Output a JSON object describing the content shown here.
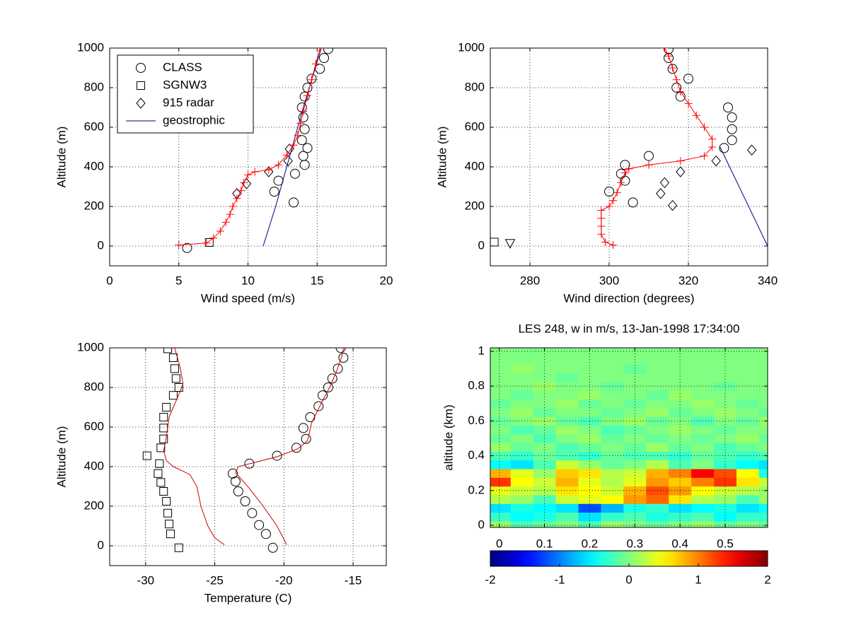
{
  "chart_data": [
    {
      "type": "line",
      "xlabel": "Wind speed (m/s)",
      "ylabel": "Altitude (m)",
      "xlim": [
        0,
        20
      ],
      "ylim": [
        -100,
        1000
      ],
      "xticks": [
        0,
        5,
        10,
        15,
        20
      ],
      "yticks": [
        0,
        200,
        400,
        600,
        800,
        1000
      ],
      "grid": true,
      "legend": "upper left",
      "series": [
        {
          "name": "CLASS",
          "marker": "circle",
          "color": "#000000",
          "line": false,
          "x": [
            5.6,
            13.3,
            11.9,
            12.2,
            13.4,
            14.1,
            14.0,
            14.3,
            13.9,
            14.1,
            14.0,
            13.9,
            14.1,
            14.3,
            14.6,
            15.2,
            15.5,
            15.8
          ],
          "y": [
            -10,
            220,
            275,
            330,
            365,
            410,
            455,
            495,
            535,
            590,
            650,
            700,
            755,
            800,
            845,
            895,
            950,
            995
          ]
        },
        {
          "name": "SGNW3",
          "marker": "square",
          "color": "#000000",
          "line": false,
          "x": [
            7.2
          ],
          "y": [
            18
          ]
        },
        {
          "name": "915 radar",
          "marker": "diamond",
          "color": "#000000",
          "line": false,
          "x": [
            9.2,
            9.9,
            11.5,
            12.9,
            13.0
          ],
          "y": [
            265,
            315,
            375,
            430,
            490
          ]
        },
        {
          "name": "geostrophic",
          "color": "#00007f",
          "line": true,
          "x": [
            11.1,
            12.0,
            13.0,
            14.0,
            15.3
          ],
          "y": [
            0,
            200,
            450,
            700,
            1000
          ]
        },
        {
          "marker": "plus",
          "color": "#ff0000",
          "line": true,
          "x": [
            5.0,
            7.0,
            7.5,
            8.0,
            8.4,
            8.7,
            8.9,
            9.2,
            9.5,
            9.7,
            10.0,
            10.5,
            11.5,
            12.2,
            12.8,
            13.3,
            13.6,
            13.8,
            14.0,
            14.3,
            14.6,
            14.9,
            15.2
          ],
          "y": [
            5,
            15,
            40,
            75,
            120,
            160,
            200,
            240,
            280,
            320,
            360,
            375,
            385,
            410,
            460,
            510,
            560,
            620,
            680,
            760,
            840,
            920,
            1000
          ]
        }
      ]
    },
    {
      "type": "line",
      "xlabel": "Wind direction (degrees)",
      "ylabel": "Altitude (m)",
      "xlim": [
        270,
        340
      ],
      "ylim": [
        -100,
        1000
      ],
      "xticks": [
        280,
        300,
        320,
        340
      ],
      "yticks": [
        0,
        200,
        400,
        600,
        800,
        1000
      ],
      "grid": true,
      "series": [
        {
          "marker": "circle",
          "color": "#000000",
          "line": false,
          "x": [
            306,
            300,
            304,
            303,
            304,
            310,
            329,
            331,
            331,
            331,
            330,
            318,
            317,
            320,
            316,
            315,
            315
          ],
          "y": [
            220,
            275,
            330,
            365,
            410,
            455,
            495,
            535,
            590,
            650,
            700,
            755,
            800,
            845,
            895,
            950,
            995
          ]
        },
        {
          "marker": "square",
          "color": "#000000",
          "line": false,
          "x": [
            271
          ],
          "y": [
            20
          ]
        },
        {
          "marker": "diamond",
          "color": "#000000",
          "line": false,
          "x": [
            316,
            313,
            314,
            318,
            327,
            336
          ],
          "y": [
            205,
            265,
            320,
            375,
            430,
            485
          ]
        },
        {
          "marker": "triangle-down",
          "color": "#000000",
          "line": false,
          "x": [
            275
          ],
          "y": [
            15
          ]
        },
        {
          "color": "#00007f",
          "line": true,
          "x": [
            328,
            340
          ],
          "y": [
            500,
            0
          ]
        },
        {
          "marker": "plus",
          "color": "#ff0000",
          "line": true,
          "x": [
            301,
            299,
            298,
            298,
            298,
            298,
            300,
            301,
            302,
            303,
            304,
            305,
            310,
            318,
            324,
            326,
            326,
            324,
            322,
            320,
            318,
            317,
            316,
            315,
            314
          ],
          "y": [
            5,
            20,
            60,
            100,
            140,
            180,
            200,
            230,
            270,
            320,
            370,
            390,
            410,
            430,
            455,
            500,
            540,
            600,
            660,
            720,
            780,
            840,
            900,
            960,
            1000
          ]
        }
      ]
    },
    {
      "type": "line",
      "xlabel": "Temperature (C)",
      "ylabel": "Altitude (m)",
      "xlim": [
        -32.6,
        -12.6
      ],
      "ylim": [
        -100,
        1000
      ],
      "xticks": [
        -30,
        -25,
        -20,
        -15
      ],
      "yticks": [
        0,
        200,
        400,
        600,
        800,
        1000
      ],
      "grid": true,
      "series": [
        {
          "marker": "square",
          "color": "#000000",
          "line": false,
          "x": [
            -27.6,
            -28.2,
            -28.3,
            -28.4,
            -28.5,
            -28.7,
            -28.9,
            -29.1,
            -29.0,
            -29.9,
            -28.9,
            -28.7,
            -28.7,
            -28.7,
            -28.5,
            -28.0,
            -27.6,
            -27.8,
            -27.9,
            -28.0,
            -28.4
          ],
          "y": [
            -10,
            60,
            110,
            165,
            225,
            275,
            320,
            365,
            415,
            455,
            495,
            540,
            595,
            650,
            700,
            760,
            800,
            845,
            895,
            950,
            995
          ]
        },
        {
          "color": "#cc0000",
          "line": true,
          "x": [
            -24.3,
            -25.0,
            -25.5,
            -26.0,
            -26.3,
            -26.8,
            -28.0,
            -28.5,
            -28.7,
            -28.5,
            -28.3,
            -28.0,
            -27.5,
            -27.3,
            -27.5,
            -27.9
          ],
          "y": [
            5,
            40,
            100,
            200,
            300,
            360,
            400,
            430,
            480,
            550,
            650,
            700,
            780,
            820,
            900,
            1000
          ]
        },
        {
          "marker": "circle",
          "color": "#000000",
          "line": false,
          "x": [
            -20.8,
            -21.3,
            -21.8,
            -22.3,
            -22.8,
            -23.3,
            -23.5,
            -23.7,
            -22.5,
            -20.5,
            -19.1,
            -18.4,
            -18.6,
            -18.1,
            -17.5,
            -17.2,
            -16.8,
            -16.5,
            -16.1,
            -15.7,
            -15.9
          ],
          "y": [
            -10,
            60,
            105,
            165,
            225,
            275,
            325,
            365,
            415,
            455,
            495,
            540,
            595,
            650,
            705,
            760,
            800,
            845,
            895,
            950,
            1000
          ]
        },
        {
          "color": "#cc0000",
          "line": true,
          "x": [
            -19.8,
            -20.5,
            -21.5,
            -22.5,
            -23.5,
            -23.3,
            -20.5,
            -19.0,
            -18.3,
            -18.0,
            -17.3,
            -16.7,
            -16.2,
            -15.8,
            -15.7
          ],
          "y": [
            5,
            100,
            200,
            290,
            370,
            400,
            450,
            490,
            530,
            620,
            720,
            800,
            880,
            960,
            1000
          ]
        }
      ]
    },
    {
      "type": "heatmap",
      "title": "LES 248, w in m/s, 13-Jan-1998 17:34:00",
      "ylabel": "altitude (km)",
      "xlim": [
        -0.02,
        0.594
      ],
      "ylim": [
        -0.012,
        1.02
      ],
      "xticks": [
        0,
        0.1,
        0.2,
        0.3,
        0.4,
        0.5
      ],
      "yticks": [
        0,
        0.2,
        0.4,
        0.6,
        0.8,
        1
      ],
      "grid": true,
      "colormap": "jet",
      "clim": [
        -2,
        2
      ],
      "cticks": [
        -2,
        -1,
        0,
        1,
        2
      ],
      "x": [
        0,
        0.05,
        0.1,
        0.15,
        0.2,
        0.25,
        0.3,
        0.35,
        0.4,
        0.45,
        0.5,
        0.55,
        0.6
      ],
      "y": [
        0,
        0.05,
        0.1,
        0.15,
        0.2,
        0.25,
        0.3,
        0.35,
        0.4,
        0.45,
        0.5,
        0.55,
        0.6,
        0.65,
        0.7,
        0.75,
        0.8,
        0.85,
        0.9,
        0.95,
        1
      ],
      "z": [
        [
          0.1,
          -0.2,
          -0.1,
          0.0,
          -0.2,
          0.1,
          0.0,
          -0.1,
          0.0,
          0.1,
          -0.1,
          0.0,
          -0.1
        ],
        [
          -0.3,
          -0.5,
          -0.4,
          -0.2,
          -0.6,
          -0.3,
          -0.2,
          -0.4,
          -0.3,
          -0.2,
          -0.5,
          -0.3,
          -0.3
        ],
        [
          -0.6,
          -0.4,
          -0.5,
          -0.6,
          -1.2,
          -0.8,
          -0.4,
          -0.3,
          -0.6,
          -0.5,
          -0.4,
          -0.6,
          -0.5
        ],
        [
          0.2,
          0.1,
          -0.2,
          0.3,
          0.4,
          0.5,
          0.9,
          1.1,
          0.6,
          0.2,
          0.1,
          -0.2,
          0.1
        ],
        [
          0.4,
          0.3,
          0.2,
          0.6,
          0.5,
          0.3,
          0.8,
          1.2,
          0.9,
          0.5,
          0.3,
          0.2,
          0.1
        ],
        [
          1.3,
          0.5,
          0.3,
          0.8,
          0.4,
          0.2,
          0.4,
          0.9,
          0.7,
          1.0,
          1.3,
          0.6,
          0.3
        ],
        [
          0.8,
          0.4,
          0.1,
          0.7,
          0.6,
          0.2,
          0.3,
          0.8,
          1.0,
          1.5,
          1.2,
          0.5,
          -0.4
        ],
        [
          -0.5,
          -0.6,
          -0.2,
          0.3,
          0.1,
          -0.1,
          0.0,
          0.2,
          -0.2,
          0.0,
          -0.3,
          -0.5,
          -0.6
        ],
        [
          -0.2,
          -0.3,
          -0.1,
          -0.2,
          -0.3,
          -0.1,
          -0.2,
          -0.2,
          -0.3,
          -0.1,
          -0.2,
          -0.3,
          -0.2
        ],
        [
          0.1,
          -0.1,
          0.0,
          -0.2,
          -0.1,
          0.0,
          -0.1,
          0.1,
          -0.1,
          0.0,
          -0.2,
          -0.1,
          0.0
        ],
        [
          -0.1,
          0.0,
          -0.2,
          0.0,
          0.1,
          -0.1,
          0.0,
          -0.1,
          0.0,
          -0.1,
          0.0,
          0.1,
          -0.1
        ],
        [
          0.0,
          -0.2,
          -0.1,
          0.1,
          0.0,
          -0.2,
          -0.1,
          0.0,
          0.1,
          0.0,
          -0.1,
          0.0,
          0.0
        ],
        [
          -0.1,
          0.0,
          0.1,
          -0.1,
          -0.2,
          0.0,
          0.1,
          -0.1,
          0.0,
          -0.2,
          0.0,
          -0.1,
          0.1
        ],
        [
          0.0,
          0.1,
          -0.1,
          0.0,
          0.0,
          -0.1,
          0.0,
          0.1,
          -0.1,
          0.0,
          0.1,
          0.0,
          -0.1
        ],
        [
          -0.1,
          0.0,
          0.0,
          0.1,
          -0.1,
          0.0,
          -0.1,
          0.0,
          0.0,
          0.1,
          0.0,
          -0.1,
          0.0
        ],
        [
          0.0,
          -0.1,
          0.0,
          0.0,
          0.1,
          0.0,
          0.0,
          -0.1,
          0.1,
          0.0,
          0.0,
          0.0,
          0.0
        ],
        [
          0.0,
          0.0,
          0.1,
          0.0,
          0.0,
          -0.1,
          0.0,
          0.0,
          0.0,
          0.0,
          -0.1,
          0.0,
          0.0
        ],
        [
          0.0,
          0.0,
          0.0,
          -0.1,
          0.0,
          0.0,
          0.0,
          0.0,
          0.0,
          0.0,
          0.0,
          0.0,
          0.0
        ],
        [
          0.0,
          0.1,
          0.0,
          0.0,
          0.0,
          0.0,
          -0.1,
          0.0,
          0.0,
          0.0,
          0.0,
          0.0,
          0.0
        ],
        [
          0.0,
          0.0,
          0.0,
          0.0,
          0.0,
          0.0,
          0.0,
          0.0,
          0.0,
          0.0,
          0.0,
          0.0,
          0.0
        ],
        [
          0.0,
          0.0,
          0.0,
          0.0,
          0.0,
          0.0,
          0.0,
          0.0,
          0.0,
          0.0,
          0.0,
          0.0,
          0.0
        ]
      ]
    }
  ]
}
